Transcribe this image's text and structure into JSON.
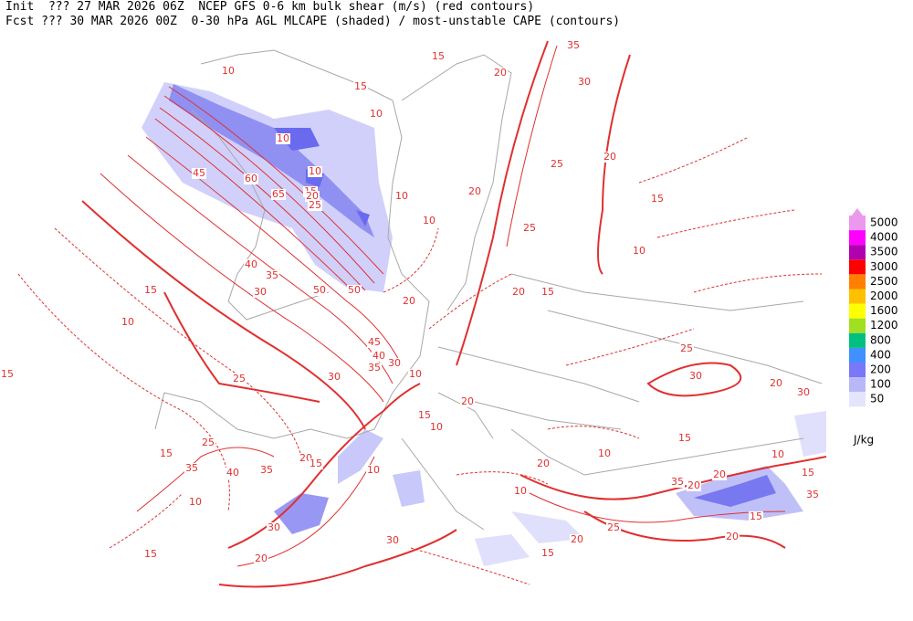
{
  "header": {
    "line1": "Init  ??? 27 MAR 2026 06Z  NCEP GFS 0-6 km bulk shear (m/s) (red contours)",
    "line2": "Fcst ??? 30 MAR 2026 00Z  0-30 hPa AGL MLCAPE (shaded) / most-unstable CAPE (contours)"
  },
  "legend": {
    "unit": "J/kg",
    "items": [
      {
        "label": "5000",
        "color": "#ec98ec"
      },
      {
        "label": "4000",
        "color": "#ff00ff"
      },
      {
        "label": "3500",
        "color": "#b000b0"
      },
      {
        "label": "3000",
        "color": "#ff0000"
      },
      {
        "label": "2500",
        "color": "#ff8000"
      },
      {
        "label": "2000",
        "color": "#ffc000"
      },
      {
        "label": "1600",
        "color": "#ffff00"
      },
      {
        "label": "1200",
        "color": "#a0e020"
      },
      {
        "label": "800",
        "color": "#00c080"
      },
      {
        "label": "400",
        "color": "#4090ff"
      },
      {
        "label": "200",
        "color": "#7878f8"
      },
      {
        "label": "100",
        "color": "#b8b8f8"
      },
      {
        "label": "50",
        "color": "#e4e4fc"
      }
    ]
  },
  "contour_labels": [
    "10",
    "15",
    "20",
    "30",
    "35",
    "15",
    "10",
    "10",
    "15",
    "10",
    "45",
    "60",
    "65",
    "20",
    "25",
    "10",
    "10",
    "20",
    "25",
    "25",
    "20",
    "15",
    "10",
    "15",
    "20",
    "40",
    "35",
    "30",
    "50",
    "50",
    "15",
    "10",
    "45",
    "40",
    "35",
    "30",
    "10",
    "25",
    "20",
    "20",
    "15",
    "10",
    "30",
    "25",
    "15",
    "10",
    "15",
    "20",
    "35",
    "40",
    "30",
    "35",
    "20",
    "15",
    "10",
    "30",
    "25",
    "20",
    "15",
    "10",
    "10",
    "15",
    "20",
    "30",
    "35",
    "20",
    "20",
    "10",
    "15",
    "25",
    "20",
    "15",
    "20",
    "30",
    "35",
    "15"
  ]
}
